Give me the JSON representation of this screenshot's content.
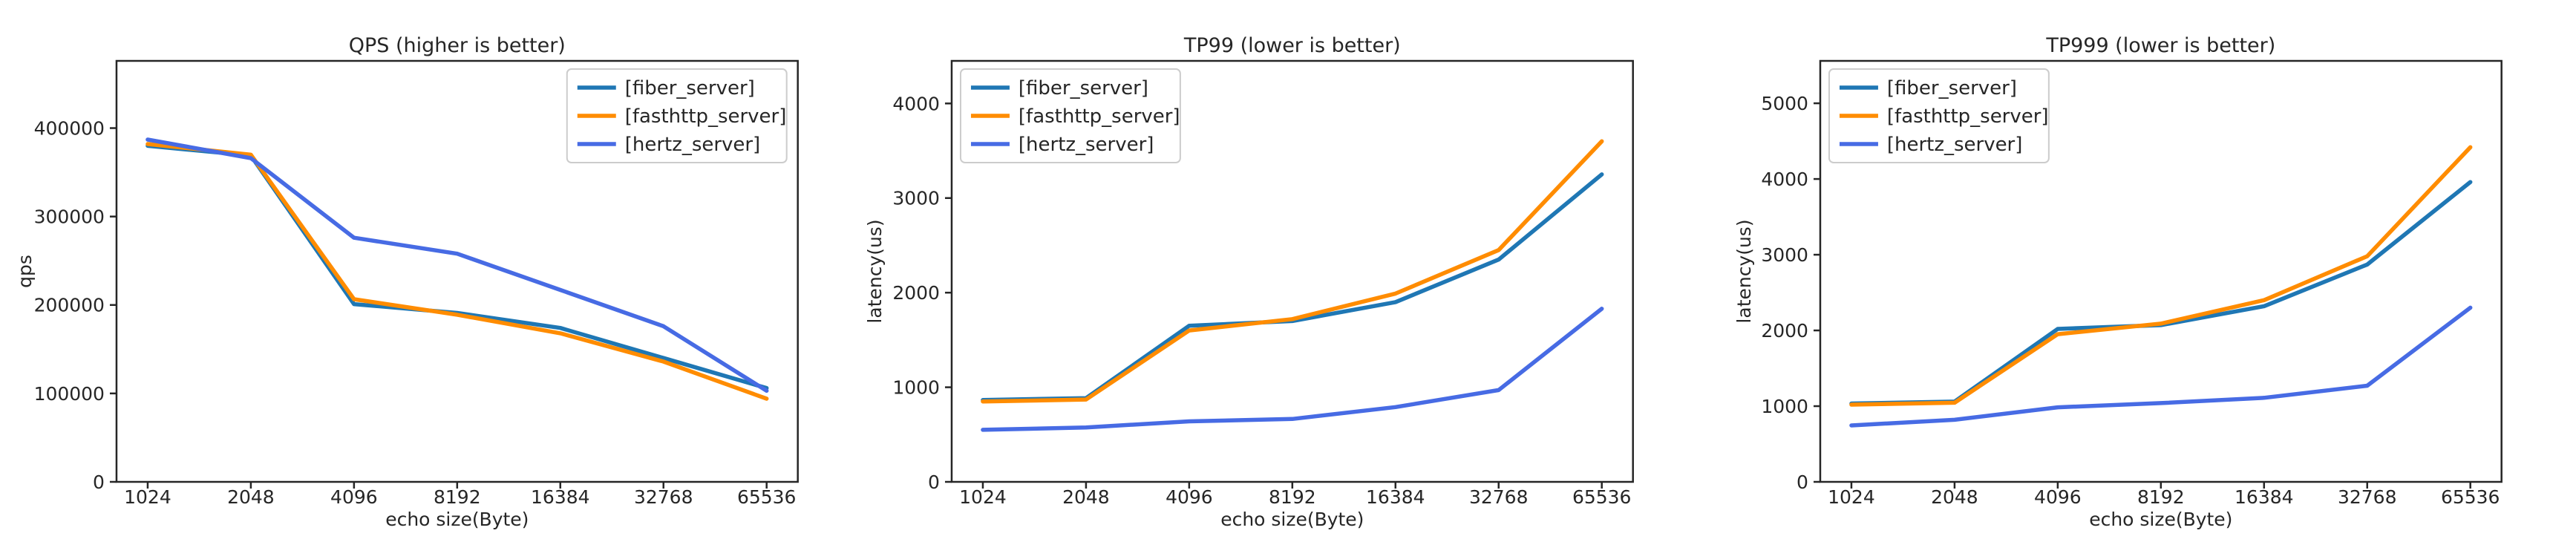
{
  "figure": {
    "background": "#ffffff",
    "spine_color": "#262626",
    "text_color": "#262626",
    "legend_border_color": "#cccccc",
    "legend_background": "#ffffff"
  },
  "chart_data": [
    {
      "type": "line",
      "title": "QPS (higher is better)",
      "xlabel": "echo size(Byte)",
      "ylabel": "qps",
      "x_scale": "powers-of-two, evenly spaced categorical",
      "categories": [
        1024,
        2048,
        4096,
        8192,
        16384,
        32768,
        65536
      ],
      "y_ticks": [
        0,
        100000,
        200000,
        300000,
        400000
      ],
      "ylim": [
        0,
        476000
      ],
      "grid": false,
      "legend_position": "upper-right",
      "series": [
        {
          "name": "[fiber_server]",
          "color": "#1f77b4",
          "values": [
            380000,
            369000,
            201000,
            191000,
            174000,
            140000,
            106000
          ]
        },
        {
          "name": "[fasthttp_server]",
          "color": "#ff8c00",
          "values": [
            382000,
            370000,
            206500,
            189000,
            168000,
            136000,
            94000
          ]
        },
        {
          "name": "[hertz_server]",
          "color": "#476be4",
          "values": [
            387000,
            366000,
            276000,
            258000,
            217000,
            176000,
            103000
          ]
        }
      ]
    },
    {
      "type": "line",
      "title": "TP99 (lower is better)",
      "xlabel": "echo size(Byte)",
      "ylabel": "latency(us)",
      "x_scale": "powers-of-two, evenly spaced categorical",
      "categories": [
        1024,
        2048,
        4096,
        8192,
        16384,
        32768,
        65536
      ],
      "y_ticks": [
        0,
        1000,
        2000,
        3000,
        4000
      ],
      "ylim": [
        0,
        4450
      ],
      "grid": false,
      "legend_position": "upper-left",
      "series": [
        {
          "name": "[fiber_server]",
          "color": "#1f77b4",
          "values": [
            865,
            885,
            1650,
            1700,
            1900,
            2350,
            3250
          ]
        },
        {
          "name": "[fasthttp_server]",
          "color": "#ff8c00",
          "values": [
            850,
            870,
            1600,
            1720,
            1990,
            2450,
            3600
          ]
        },
        {
          "name": "[hertz_server]",
          "color": "#476be4",
          "values": [
            550,
            575,
            640,
            665,
            790,
            970,
            1830
          ]
        }
      ]
    },
    {
      "type": "line",
      "title": "TP999 (lower is better)",
      "xlabel": "echo size(Byte)",
      "ylabel": "latency(us)",
      "x_scale": "powers-of-two, evenly spaced categorical",
      "categories": [
        1024,
        2048,
        4096,
        8192,
        16384,
        32768,
        65536
      ],
      "y_ticks": [
        0,
        1000,
        2000,
        3000,
        4000,
        5000
      ],
      "ylim": [
        0,
        5560
      ],
      "grid": false,
      "legend_position": "upper-left",
      "series": [
        {
          "name": "[fiber_server]",
          "color": "#1f77b4",
          "values": [
            1035,
            1060,
            2020,
            2070,
            2320,
            2870,
            3960
          ]
        },
        {
          "name": "[fasthttp_server]",
          "color": "#ff8c00",
          "values": [
            1020,
            1045,
            1950,
            2090,
            2400,
            2980,
            4420
          ]
        },
        {
          "name": "[hertz_server]",
          "color": "#476be4",
          "values": [
            745,
            820,
            985,
            1040,
            1110,
            1270,
            2300
          ]
        }
      ]
    }
  ]
}
